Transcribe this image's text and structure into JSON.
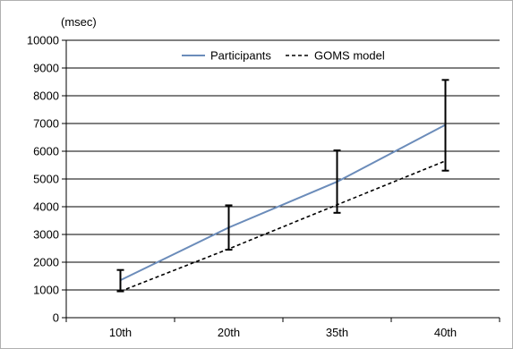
{
  "chart_data": {
    "type": "line",
    "unit_label": "(msec)",
    "categories": [
      "10th",
      "20th",
      "35th",
      "40th"
    ],
    "y_ticks": [
      0,
      1000,
      2000,
      3000,
      4000,
      5000,
      6000,
      7000,
      8000,
      9000,
      10000
    ],
    "ylim": [
      0,
      10000
    ],
    "grid": true,
    "legend_position": "top-center",
    "series": [
      {
        "name": "Participants",
        "values": [
          1350,
          3250,
          4900,
          6950
        ],
        "error_low": [
          950,
          2450,
          3780,
          5300
        ],
        "error_high": [
          1720,
          4050,
          6030,
          8570
        ],
        "color": "#6b8cba",
        "style": "solid"
      },
      {
        "name": "GOMS model",
        "values": [
          950,
          2480,
          4070,
          5650
        ],
        "color": "#000000",
        "style": "dashed"
      }
    ]
  }
}
